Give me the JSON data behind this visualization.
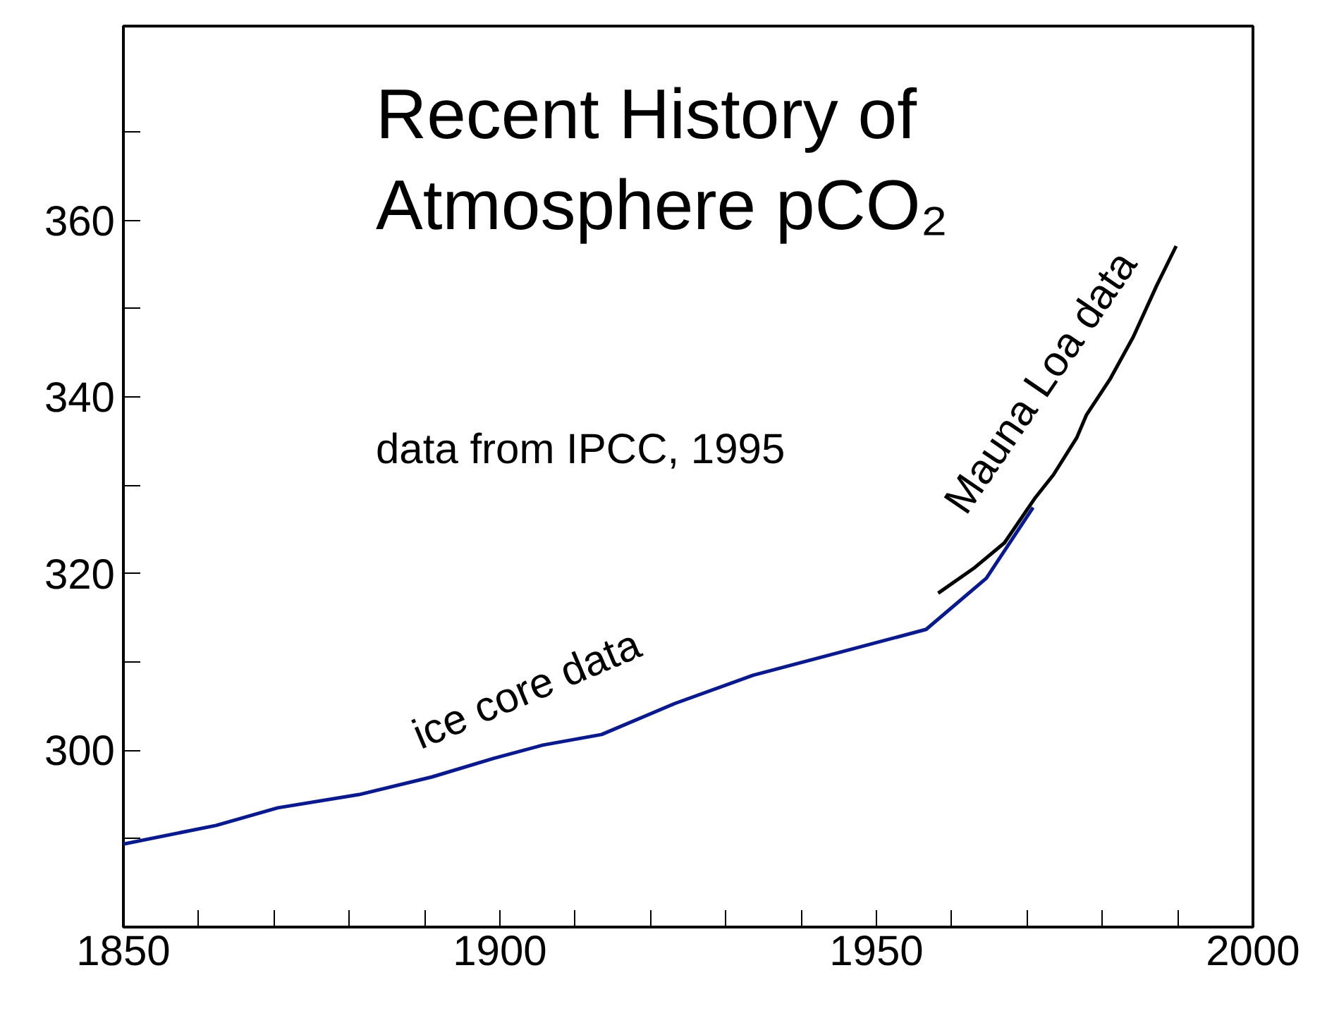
{
  "chart_data": {
    "type": "line",
    "title": "Recent History of\nAtmosphere pCO₂",
    "annotations": [
      "data from IPCC, 1995"
    ],
    "xlim": [
      1850,
      2000
    ],
    "ylim": [
      280,
      382
    ],
    "xticks": [
      1850,
      {
        "value": 1860,
        "label": null
      },
      {
        "value": 1870,
        "label": null
      },
      {
        "value": 1880,
        "label": null
      },
      {
        "value": 1890,
        "label": null
      },
      1900,
      {
        "value": 1910,
        "label": null
      },
      {
        "value": 1920,
        "label": null
      },
      {
        "value": 1930,
        "label": null
      },
      {
        "value": 1940,
        "label": null
      },
      1950,
      {
        "value": 1960,
        "label": null
      },
      {
        "value": 1970,
        "label": null
      },
      {
        "value": 1980,
        "label": null
      },
      {
        "value": 1990,
        "label": null
      },
      2000
    ],
    "yticks": [
      {
        "value": 290,
        "label": null
      },
      300,
      {
        "value": 310,
        "label": null
      },
      320,
      {
        "value": 330,
        "label": null
      },
      340,
      {
        "value": 350,
        "label": null
      },
      360,
      {
        "value": 370,
        "label": null
      }
    ],
    "grid": false,
    "legend": false,
    "marker": "none",
    "line_style": "solid",
    "series": [
      {
        "name": "ice core data",
        "color": "#0a1a8c",
        "x": [
          1850,
          1862.3,
          1870.5,
          1881.3,
          1891.0,
          1899.2,
          1905.7,
          1913.5,
          1923.2,
          1933.6,
          1945.1,
          1956.6,
          1964.6,
          1970.8
        ],
        "values": [
          289.4,
          291.5,
          293.5,
          295.0,
          297.0,
          299.1,
          300.6,
          301.8,
          305.3,
          308.5,
          311.1,
          313.7,
          319.5,
          327.5
        ]
      },
      {
        "name": "Mauna Loa data",
        "color": "#000000",
        "x": [
          1958.2,
          1962.9,
          1967.0,
          1971.0,
          1973.5,
          1976.6,
          1977.9,
          1981.0,
          1984.1,
          1987.2,
          1989.8
        ],
        "values": [
          317.8,
          320.6,
          323.5,
          328.5,
          331.2,
          335.4,
          338.0,
          342.0,
          346.8,
          352.6,
          357.1
        ]
      }
    ]
  }
}
